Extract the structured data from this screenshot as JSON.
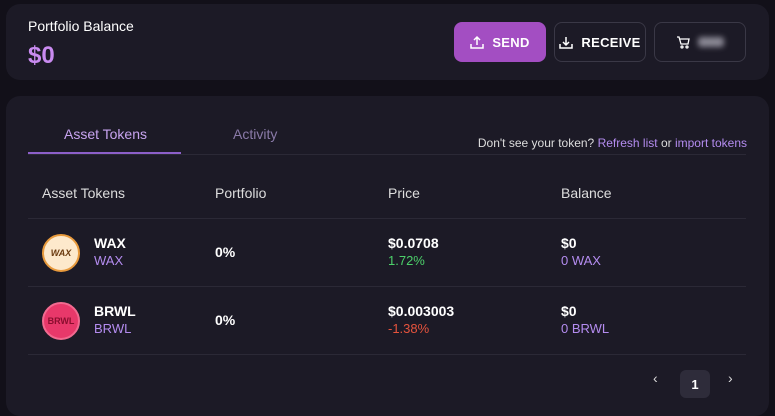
{
  "balance": {
    "label": "Portfolio Balance",
    "value": "$0"
  },
  "actions": {
    "send": "SEND",
    "receive": "RECEIVE"
  },
  "tabs": [
    {
      "label": "Asset Tokens"
    },
    {
      "label": "Activity"
    }
  ],
  "hint": {
    "text": "Don't see your token?",
    "refresh": "Refresh list",
    "or": "or",
    "import": "import tokens"
  },
  "columns": [
    "Asset Tokens",
    "Portfolio",
    "Price",
    "Balance"
  ],
  "rows": [
    {
      "symbol": "WAX",
      "name": "WAX",
      "logo": "WAX",
      "portfolio": "0%",
      "price": "$0.0708",
      "change": "1.72%",
      "balance": "$0",
      "amount": "0 WAX",
      "change_color": "#4cd06a"
    },
    {
      "symbol": "BRWL",
      "name": "BRWL",
      "logo": "BRWL",
      "portfolio": "0%",
      "price": "$0.003003",
      "change": "-1.38%",
      "balance": "$0",
      "amount": "0 BRWL",
      "change_color": "#e5533d"
    }
  ],
  "pagination": {
    "current": "1",
    "prev": "‹",
    "next": "›"
  }
}
